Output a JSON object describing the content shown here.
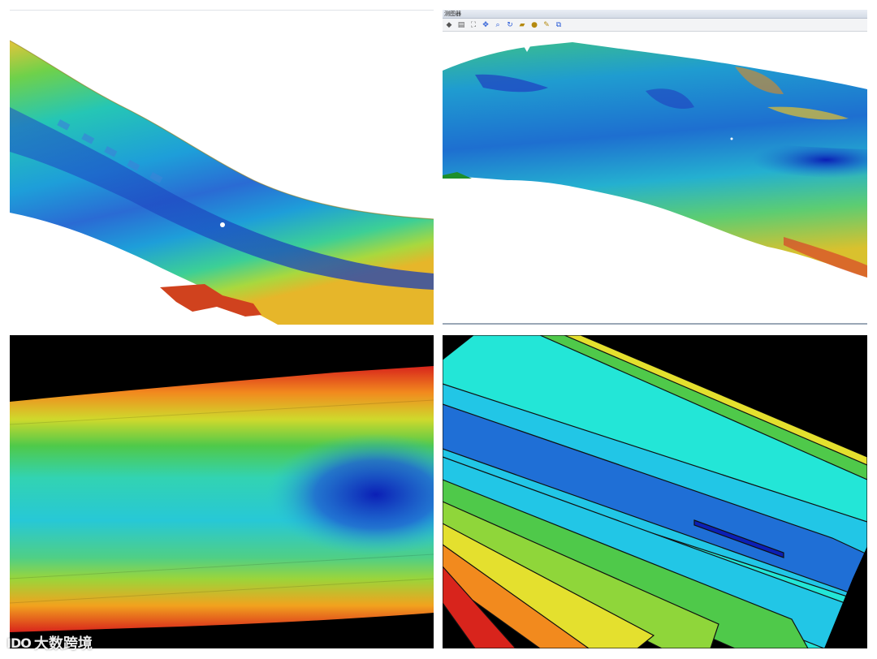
{
  "panels": {
    "top_left": {
      "type": "3d-bathymetric-terrain"
    },
    "top_right": {
      "type": "3d-bathymetric-terrain-in-viewer",
      "window_title": "测图器",
      "toolbar": [
        {
          "icon": "layers-icon"
        },
        {
          "icon": "print-icon"
        },
        {
          "icon": "fit-extent-icon"
        },
        {
          "icon": "pan-icon"
        },
        {
          "icon": "zoom-icon"
        },
        {
          "icon": "rotate-icon"
        },
        {
          "icon": "measure-icon"
        },
        {
          "icon": "pin-icon"
        },
        {
          "icon": "settings-icon"
        },
        {
          "icon": "link-icon"
        }
      ]
    },
    "bottom_left": {
      "type": "2d-color-shaded-bathymetry"
    },
    "bottom_right": {
      "type": "2d-contour-bathymetry"
    }
  },
  "palette": {
    "deep": "#0b1fb6",
    "blue": "#1f6fd6",
    "cyan": "#22c6d8",
    "aqua": "#23e6d7",
    "green": "#4fc94a",
    "yellow": "#e4e02e",
    "orange": "#f28a1e",
    "red": "#d8241c"
  },
  "watermark": {
    "logo": "IDO",
    "text": "大数跨境"
  }
}
